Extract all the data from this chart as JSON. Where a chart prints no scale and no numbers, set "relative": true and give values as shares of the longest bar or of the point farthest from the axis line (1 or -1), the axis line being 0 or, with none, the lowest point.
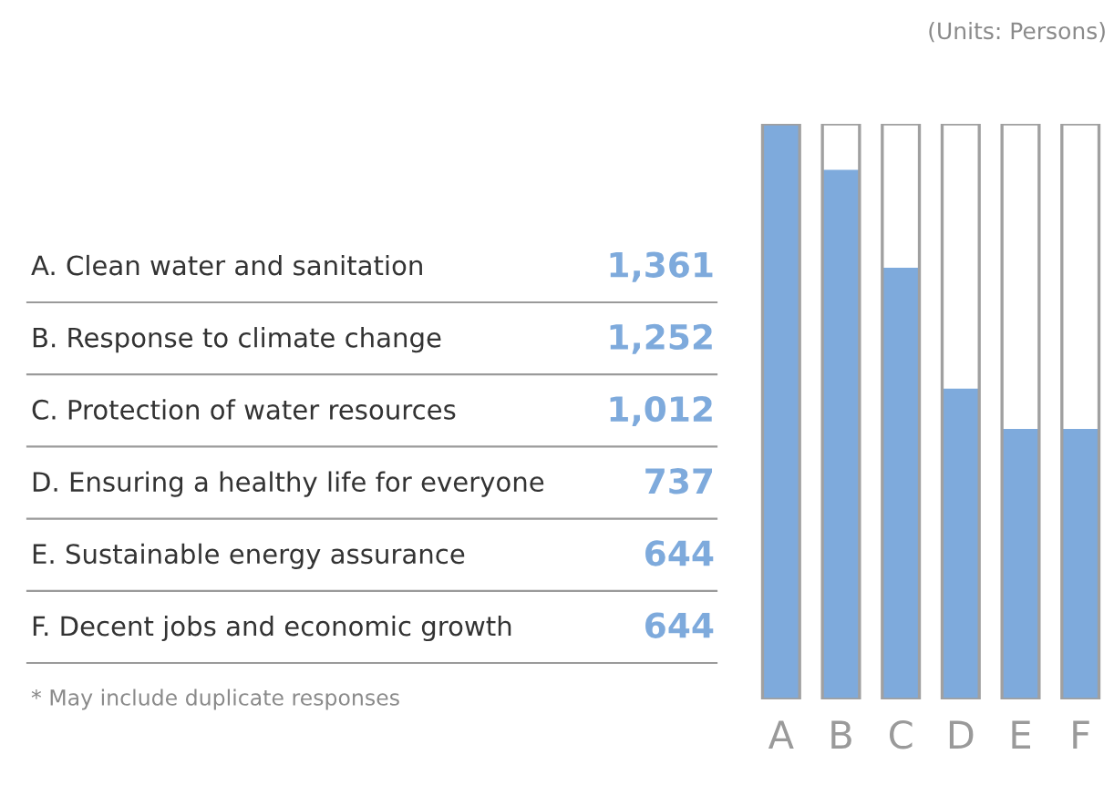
{
  "chart_data": {
    "type": "bar",
    "categories": [
      "A",
      "B",
      "C",
      "D",
      "E",
      "F"
    ],
    "values": [
      1,
      0.92,
      0.75,
      0.54,
      0.47,
      0.47
    ],
    "relative": true,
    "color": "#7eaadc",
    "tick_labels": "x",
    "annotations": [
      "A. Clean water and sanitation",
      "B. Response to climate change",
      "C. Protection of water resources",
      "D. Ensuring a healthy life for everyone",
      "E. Sustainable energy assurance",
      "F. Decent jobs and economic growth",
      "1,361",
      "1,252",
      "1,012",
      "737",
      "644",
      "644",
      "* May include duplicate responses",
      "(Units: Persons)"
    ]
  }
}
